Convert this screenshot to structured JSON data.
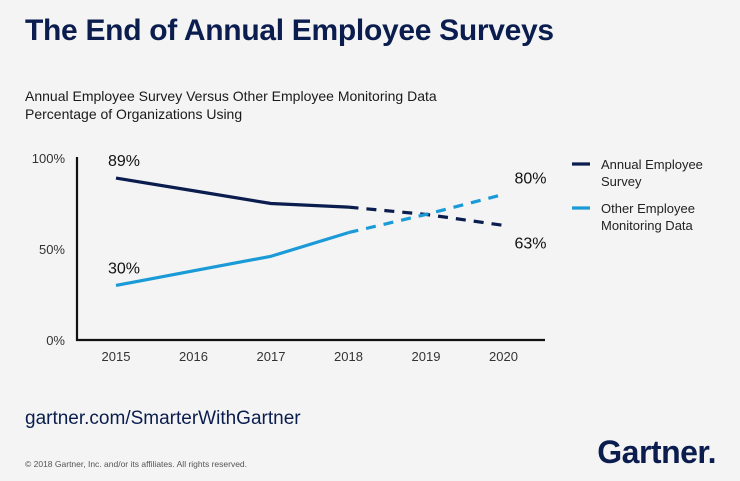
{
  "header": {
    "title": "The End of Annual Employee Surveys",
    "subtitle_line1": "Annual Employee Survey Versus Other Employee Monitoring Data",
    "subtitle_line2": "Percentage of Organizations Using"
  },
  "footer": {
    "url": "gartner.com/SmarterWithGartner",
    "copyright": "© 2018 Gartner, Inc. and/or its affiliates. All rights reserved.",
    "logo": "Gartner."
  },
  "colors": {
    "annual": "#0a1d4e",
    "other": "#1a9ad6",
    "axis": "#111111"
  },
  "chart_data": {
    "type": "line",
    "title": "Annual Employee Survey Versus Other Employee Monitoring Data",
    "subtitle": "Percentage of Organizations Using",
    "xlabel": "",
    "ylabel": "",
    "categories": [
      "2015",
      "2016",
      "2017",
      "2018",
      "2019",
      "2020"
    ],
    "ylim": [
      0,
      100
    ],
    "yticks": [
      0,
      50,
      100
    ],
    "ytick_labels": [
      "0%",
      "50%",
      "100%"
    ],
    "grid": false,
    "legend_position": "right",
    "projected_from": "2018",
    "series": [
      {
        "name": "Annual Employee Survey",
        "values": [
          89,
          82,
          75,
          73,
          69,
          63
        ],
        "color": "#0a1d4e",
        "style_actual": "solid",
        "style_projected": "dashed",
        "data_labels": [
          {
            "index": 0,
            "text": "89%"
          },
          {
            "index": 5,
            "text": "63%"
          }
        ]
      },
      {
        "name": "Other Employee Monitoring Data",
        "values": [
          30,
          38,
          46,
          59,
          69,
          80
        ],
        "color": "#1a9ad6",
        "style_actual": "solid",
        "style_projected": "dashed",
        "data_labels": [
          {
            "index": 0,
            "text": "30%"
          },
          {
            "index": 5,
            "text": "80%"
          }
        ]
      }
    ],
    "legend": [
      {
        "line1": "Annual Employee",
        "line2": "Survey"
      },
      {
        "line1": "Other Employee",
        "line2": "Monitoring Data"
      }
    ]
  }
}
